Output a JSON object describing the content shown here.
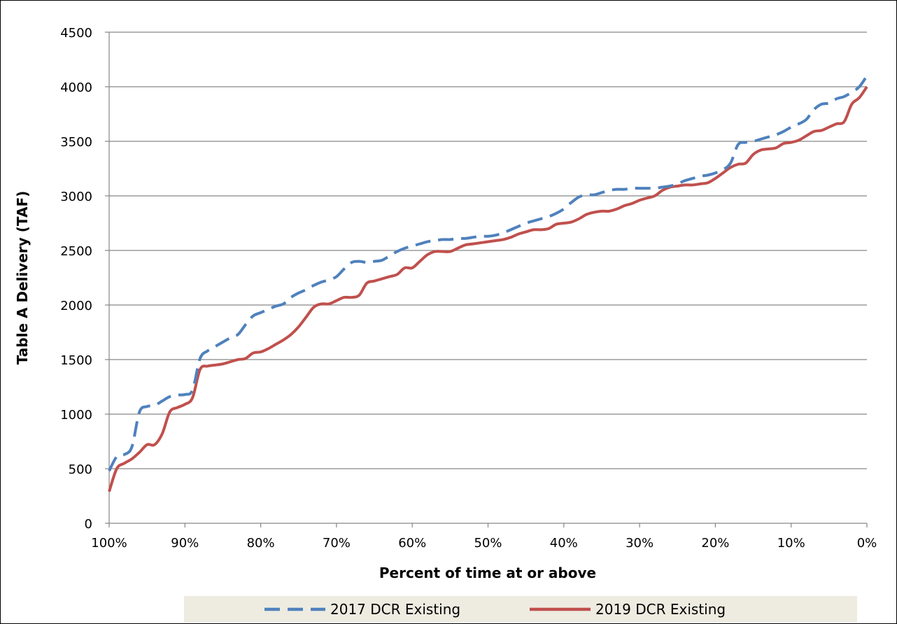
{
  "chart_data": {
    "type": "line",
    "xlabel": "Percent of time at or above",
    "ylabel": "Table A Delivery (TAF)",
    "xlim": [
      100,
      0
    ],
    "ylim": [
      0,
      4500
    ],
    "x_ticks": [
      "100%",
      "90%",
      "80%",
      "70%",
      "60%",
      "50%",
      "40%",
      "30%",
      "20%",
      "10%",
      "0%"
    ],
    "y_ticks": [
      "0",
      "500",
      "1000",
      "1500",
      "2000",
      "2500",
      "3000",
      "3500",
      "4000",
      "4500"
    ],
    "grid": "horizontal",
    "legend_position": "bottom",
    "series": [
      {
        "name": "2017 DCR Existing",
        "color": "#4f81bd",
        "style": "dashed",
        "x": [
          100,
          99,
          98,
          97,
          96,
          95,
          94,
          93,
          92,
          91,
          90,
          89,
          88,
          87,
          86,
          85,
          84,
          83,
          82,
          81,
          80,
          79,
          78,
          77,
          76,
          75,
          74,
          73,
          72,
          71,
          70,
          69,
          68,
          67,
          66,
          65,
          64,
          63,
          62,
          61,
          60,
          59,
          58,
          57,
          56,
          55,
          54,
          53,
          52,
          51,
          50,
          49,
          48,
          47,
          46,
          45,
          44,
          43,
          42,
          41,
          40,
          39,
          38,
          37,
          36,
          35,
          34,
          33,
          32,
          31,
          30,
          29,
          28,
          27,
          26,
          25,
          24,
          23,
          22,
          21,
          20,
          19,
          18,
          17,
          16,
          15,
          14,
          13,
          12,
          11,
          10,
          9,
          8,
          7,
          6,
          5,
          4,
          3,
          2,
          1,
          0
        ],
        "y": [
          480,
          610,
          630,
          700,
          1020,
          1070,
          1080,
          1120,
          1160,
          1175,
          1180,
          1220,
          1510,
          1580,
          1620,
          1660,
          1700,
          1730,
          1820,
          1900,
          1930,
          1960,
          1990,
          2010,
          2070,
          2110,
          2140,
          2180,
          2210,
          2230,
          2260,
          2330,
          2390,
          2400,
          2390,
          2400,
          2410,
          2450,
          2490,
          2520,
          2540,
          2560,
          2580,
          2590,
          2600,
          2600,
          2610,
          2610,
          2620,
          2630,
          2630,
          2640,
          2660,
          2690,
          2720,
          2750,
          2770,
          2790,
          2810,
          2840,
          2880,
          2940,
          2990,
          3010,
          3010,
          3030,
          3050,
          3060,
          3060,
          3070,
          3070,
          3070,
          3070,
          3080,
          3090,
          3110,
          3140,
          3160,
          3180,
          3190,
          3210,
          3240,
          3300,
          3470,
          3490,
          3500,
          3520,
          3540,
          3560,
          3590,
          3630,
          3660,
          3700,
          3790,
          3840,
          3850,
          3890,
          3910,
          3950,
          4000,
          4100
        ]
      },
      {
        "name": "2019 DCR Existing",
        "color": "#c0504d",
        "style": "solid",
        "x": [
          100,
          99,
          98,
          97,
          96,
          95,
          94,
          93,
          92,
          91,
          90,
          89,
          88,
          87,
          86,
          85,
          84,
          83,
          82,
          81,
          80,
          79,
          78,
          77,
          76,
          75,
          74,
          73,
          72,
          71,
          70,
          69,
          68,
          67,
          66,
          65,
          64,
          63,
          62,
          61,
          60,
          59,
          58,
          57,
          56,
          55,
          54,
          53,
          52,
          51,
          50,
          49,
          48,
          47,
          46,
          45,
          44,
          43,
          42,
          41,
          40,
          39,
          38,
          37,
          36,
          35,
          34,
          33,
          32,
          31,
          30,
          29,
          28,
          27,
          26,
          25,
          24,
          23,
          22,
          21,
          20,
          19,
          18,
          17,
          16,
          15,
          14,
          13,
          12,
          11,
          10,
          9,
          8,
          7,
          6,
          5,
          4,
          3,
          2,
          1,
          0
        ],
        "y": [
          290,
          500,
          550,
          590,
          650,
          720,
          720,
          820,
          1020,
          1060,
          1090,
          1150,
          1410,
          1440,
          1450,
          1460,
          1480,
          1500,
          1510,
          1560,
          1570,
          1600,
          1640,
          1680,
          1730,
          1800,
          1890,
          1980,
          2010,
          2010,
          2040,
          2070,
          2070,
          2090,
          2200,
          2220,
          2240,
          2260,
          2280,
          2340,
          2340,
          2400,
          2460,
          2490,
          2490,
          2490,
          2520,
          2550,
          2560,
          2570,
          2580,
          2590,
          2600,
          2620,
          2650,
          2670,
          2690,
          2690,
          2700,
          2740,
          2750,
          2760,
          2790,
          2830,
          2850,
          2860,
          2860,
          2880,
          2910,
          2930,
          2960,
          2980,
          3000,
          3050,
          3080,
          3090,
          3100,
          3100,
          3110,
          3120,
          3160,
          3210,
          3260,
          3290,
          3300,
          3380,
          3420,
          3430,
          3440,
          3480,
          3490,
          3510,
          3550,
          3590,
          3600,
          3630,
          3660,
          3680,
          3840,
          3900,
          4000
        ]
      }
    ]
  }
}
